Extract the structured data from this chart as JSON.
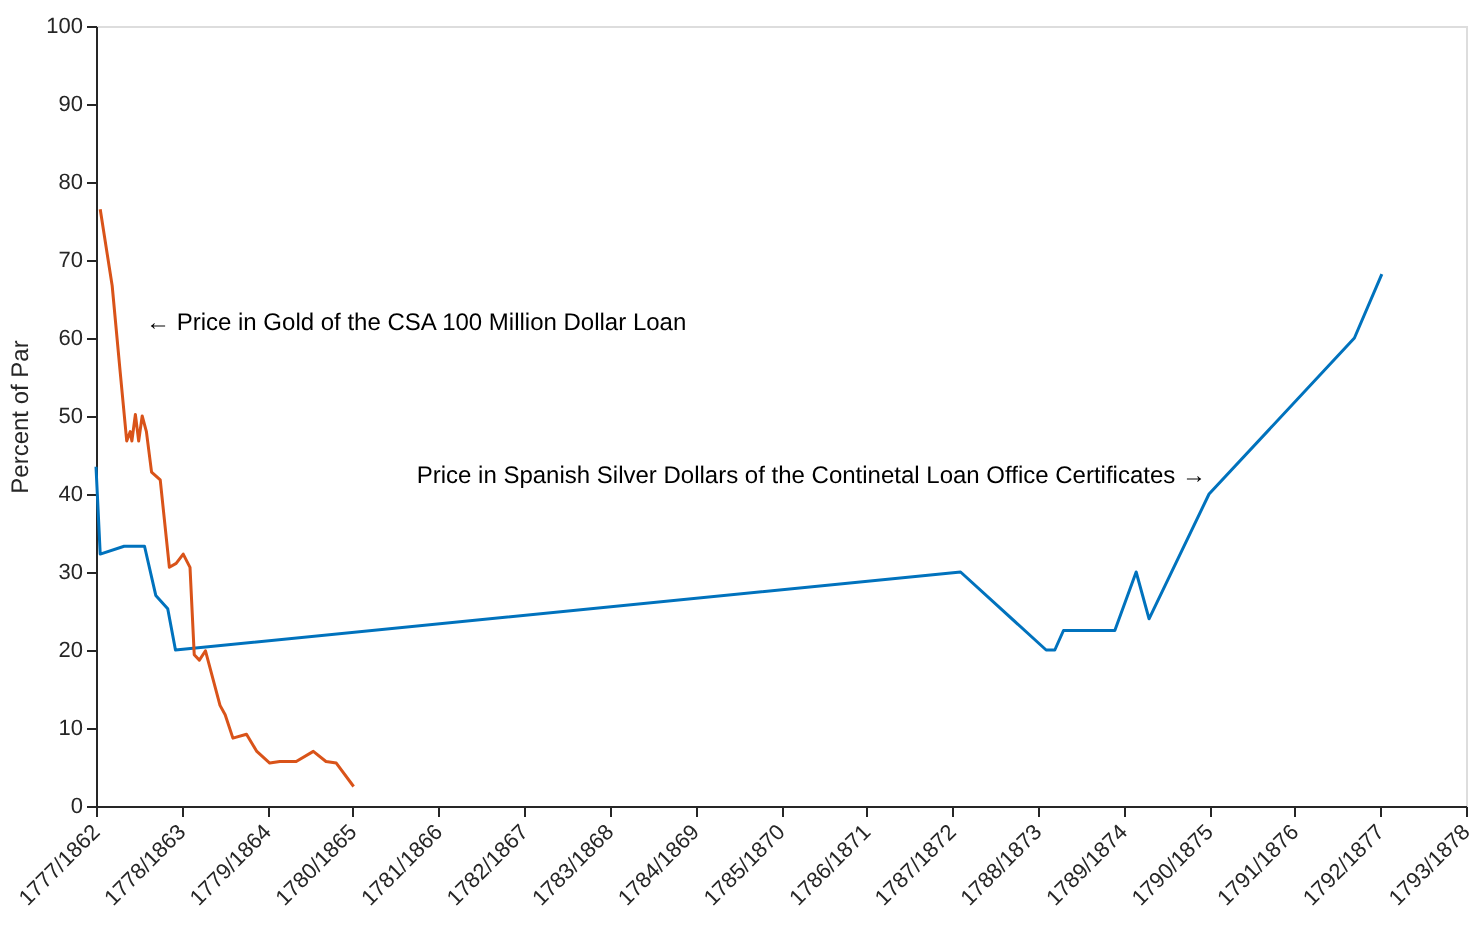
{
  "chart_data": {
    "type": "line",
    "ylabel": "Percent of Par",
    "xlim": [
      "1777",
      "1793"
    ],
    "ylim": [
      0,
      100
    ],
    "xticks": [
      {
        "value": "1777",
        "label": "1777/1862"
      },
      {
        "value": "1778",
        "label": "1778/1863"
      },
      {
        "value": "1779",
        "label": "1779/1864"
      },
      {
        "value": "1780",
        "label": "1780/1865"
      },
      {
        "value": "1781",
        "label": "1781/1866"
      },
      {
        "value": "1782",
        "label": "1782/1867"
      },
      {
        "value": "1783",
        "label": "1783/1868"
      },
      {
        "value": "1784",
        "label": "1784/1869"
      },
      {
        "value": "1785",
        "label": "1785/1870"
      },
      {
        "value": "1786",
        "label": "1786/1871"
      },
      {
        "value": "1787",
        "label": "1787/1872"
      },
      {
        "value": "1788",
        "label": "1788/1873"
      },
      {
        "value": "1789",
        "label": "1789/1874"
      },
      {
        "value": "1790",
        "label": "1790/1875"
      },
      {
        "value": "1791",
        "label": "1791/1876"
      },
      {
        "value": "1792",
        "label": "1792/1877"
      },
      {
        "value": "1793",
        "label": "1793/1878"
      }
    ],
    "yticks": [
      0,
      10,
      20,
      30,
      40,
      50,
      60,
      70,
      80,
      90,
      100
    ],
    "grid": false,
    "marker": "none",
    "line_style": "solid",
    "series": [
      {
        "color": "#0072bd",
        "x": [
          "1777-01-01",
          "1777-01-19",
          "1777-05-01",
          "1777-07-27",
          "1777-09-13",
          "1777-11-03",
          "1777-12-06",
          "1787-02-06",
          "1788-02-06",
          "1788-03-14",
          "1788-04-20",
          "1788-11-25",
          "1789-02-24",
          "1789-04-20",
          "1790-01-01",
          "1791-09-13",
          "1792-01-08"
        ],
        "values": [
          43.5,
          32.3,
          33.3,
          33.3,
          27,
          25.3,
          20,
          30,
          20,
          20,
          22.5,
          22.5,
          30,
          24,
          40,
          60,
          68.2
        ]
      },
      {
        "color": "#d95319",
        "x": [
          "1777-01-19",
          "1777-03-11",
          "1777-04-13",
          "1777-05-12",
          "1777-05-27",
          "1777-06-03",
          "1777-06-18",
          "1777-07-02",
          "1777-07-17",
          "1777-08-04",
          "1777-08-26",
          "1777-10-02",
          "1777-11-10",
          "1777-12-09",
          "1778-01-08",
          "1778-02-06",
          "1778-02-24",
          "1778-03-18",
          "1778-04-13",
          "1778-06-14",
          "1778-07-06",
          "1778-08-08",
          "1778-10-05",
          "1778-11-18",
          "1779-01-12",
          "1779-02-24",
          "1779-05-05",
          "1779-07-17",
          "1779-09-09",
          "1779-10-23",
          "1780-01-05"
        ],
        "values": [
          76.5,
          66.7,
          56,
          46.8,
          48,
          46.8,
          50.2,
          46.8,
          50,
          48,
          42.8,
          41.8,
          30.6,
          31.1,
          32.3,
          30.6,
          19.4,
          18.7,
          19.9,
          12.9,
          11.7,
          8.7,
          9.2,
          7,
          5.5,
          5.7,
          5.7,
          7,
          5.7,
          5.5,
          2.5
        ]
      }
    ],
    "annotations": [
      "← Price in Gold of the CSA 100 Million Dollar Loan",
      "Price in Spanish Silver Dollars of the Continetal Loan Office Certificates →"
    ]
  }
}
